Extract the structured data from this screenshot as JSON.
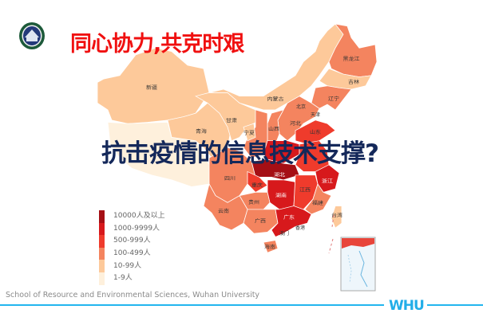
{
  "slide": {
    "title": "同心协力,共克时艰",
    "subtitle": "抗击疫情的信息技术支撑?",
    "footer": "School of Resource and Environmental Sciences, Wuhan University",
    "brand": "WHU",
    "logo_text": "WHU"
  },
  "colors": {
    "title": "#f01010",
    "subtitle": "#14285a",
    "accent_line": "#22b5ee"
  },
  "legend": [
    {
      "label": "10000人及以上",
      "color": "#a50f15"
    },
    {
      "label": "1000-9999人",
      "color": "#d7191c"
    },
    {
      "label": "500-999人",
      "color": "#ef3b2c"
    },
    {
      "label": "100-499人",
      "color": "#f4845f"
    },
    {
      "label": "10-99人",
      "color": "#fdc99a"
    },
    {
      "label": "1-9人",
      "color": "#fef0dc"
    }
  ],
  "provinces": [
    {
      "name": "新疆",
      "level": 4
    },
    {
      "name": "",
      "level": 5
    },
    {
      "name": "青海",
      "level": 4
    },
    {
      "name": "甘肃",
      "level": 4
    },
    {
      "name": "内蒙古",
      "level": 4
    },
    {
      "name": "黑龙江",
      "level": 3
    },
    {
      "name": "吉林",
      "level": 4
    },
    {
      "name": "辽宁",
      "level": 3
    },
    {
      "name": "河北",
      "level": 3
    },
    {
      "name": "山西",
      "level": 3
    },
    {
      "name": "",
      "level": 3
    },
    {
      "name": "宁夏",
      "level": 4
    },
    {
      "name": "山东",
      "level": 2
    },
    {
      "name": "",
      "level": 1
    },
    {
      "name": "",
      "level": 2
    },
    {
      "name": "湖北",
      "level": 0
    },
    {
      "name": "浙江",
      "level": 1
    },
    {
      "name": "四川",
      "level": 3
    },
    {
      "name": "重庆",
      "level": 2
    },
    {
      "name": "湖南",
      "level": 1
    },
    {
      "name": "江西",
      "level": 2
    },
    {
      "name": "福建",
      "level": 3
    },
    {
      "name": "贵州",
      "level": 3
    },
    {
      "name": "云南",
      "level": 3
    },
    {
      "name": "广西",
      "level": 3
    },
    {
      "name": "广东",
      "level": 1
    },
    {
      "name": "海南",
      "level": 3
    },
    {
      "name": "台湾",
      "level": 4
    }
  ],
  "city_labels": [
    "北京",
    "天津",
    "香港",
    "澳门"
  ]
}
